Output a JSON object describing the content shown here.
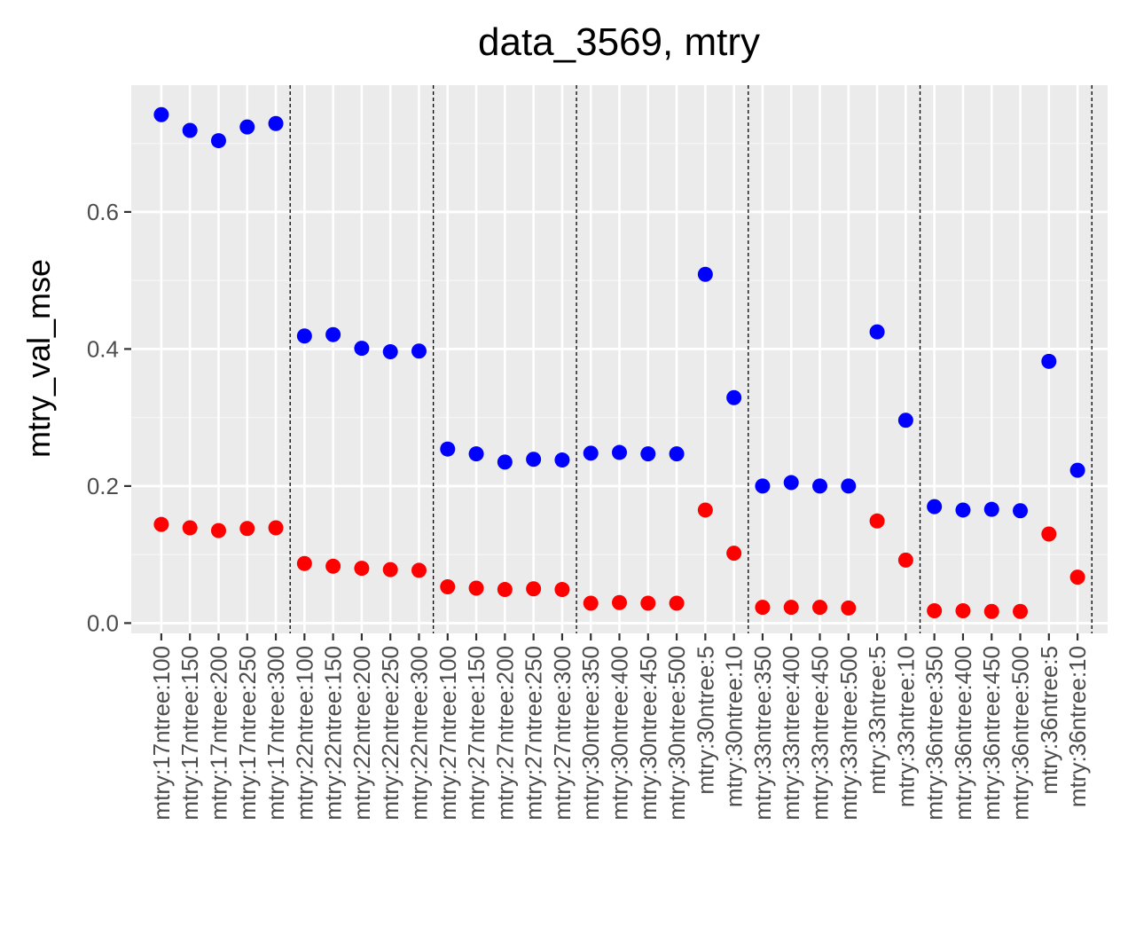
{
  "chart_data": {
    "type": "scatter",
    "title": "data_3569, mtry",
    "xlabel": "",
    "ylabel": "mtry_val_mse",
    "ylim": [
      -0.015,
      0.785
    ],
    "yticks": [
      0.0,
      0.2,
      0.4,
      0.6
    ],
    "ytick_labels": [
      "0.0",
      "0.2",
      "0.4",
      "0.6"
    ],
    "grid": true,
    "legend": "none",
    "categories": [
      "mtry:17ntree:100",
      "mtry:17ntree:150",
      "mtry:17ntree:200",
      "mtry:17ntree:250",
      "mtry:17ntree:300",
      "mtry:22ntree:100",
      "mtry:22ntree:150",
      "mtry:22ntree:200",
      "mtry:22ntree:250",
      "mtry:22ntree:300",
      "mtry:27ntree:100",
      "mtry:27ntree:150",
      "mtry:27ntree:200",
      "mtry:27ntree:250",
      "mtry:27ntree:300",
      "mtry:30ntree:350",
      "mtry:30ntree:400",
      "mtry:30ntree:450",
      "mtry:30ntree:500",
      "mtry:30ntree:5",
      "mtry:30ntree:10",
      "mtry:33ntree:350",
      "mtry:33ntree:400",
      "mtry:33ntree:450",
      "mtry:33ntree:500",
      "mtry:33ntree:5",
      "mtry:33ntree:10",
      "mtry:36ntree:350",
      "mtry:36ntree:400",
      "mtry:36ntree:450",
      "mtry:36ntree:500",
      "mtry:36ntree:5",
      "mtry:36ntree:10"
    ],
    "series": [
      {
        "color": "#0000ff",
        "values": [
          0.742,
          0.719,
          0.704,
          0.724,
          0.729,
          0.419,
          0.421,
          0.401,
          0.396,
          0.397,
          0.254,
          0.247,
          0.235,
          0.239,
          0.238,
          0.248,
          0.249,
          0.247,
          0.247,
          0.509,
          0.329,
          0.2,
          0.205,
          0.2,
          0.2,
          0.425,
          0.296,
          0.17,
          0.165,
          0.166,
          0.164,
          0.382,
          0.223
        ]
      },
      {
        "color": "#ff0000",
        "values": [
          0.144,
          0.139,
          0.135,
          0.138,
          0.139,
          0.087,
          0.083,
          0.08,
          0.078,
          0.077,
          0.053,
          0.051,
          0.049,
          0.05,
          0.049,
          0.029,
          0.03,
          0.029,
          0.029,
          0.165,
          0.102,
          0.023,
          0.023,
          0.023,
          0.022,
          0.149,
          0.092,
          0.018,
          0.018,
          0.017,
          0.017,
          0.13,
          0.067
        ]
      }
    ],
    "vlines_after_category_index": [
      4,
      9,
      14,
      20,
      26,
      32
    ],
    "vline_style": "dashed",
    "colors": {
      "panel_background": "#ebebeb",
      "grid_major": "#ffffff",
      "grid_minor": "#f5f5f5",
      "vline": "#000000",
      "tick_mark": "#333333"
    }
  }
}
